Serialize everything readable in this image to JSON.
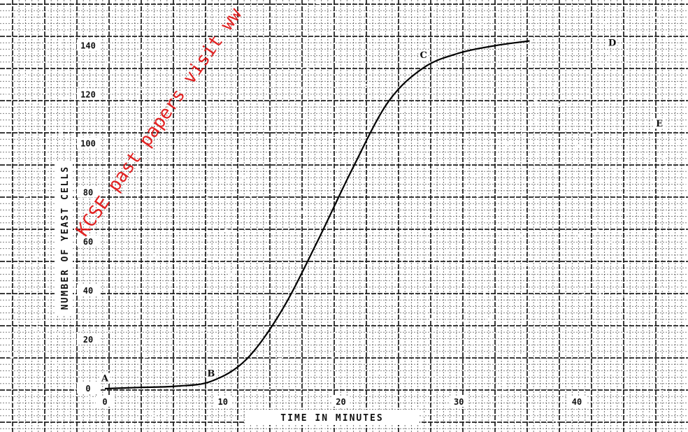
{
  "watermark": "KCSE past papers visit ww",
  "colors": {
    "paper": "#ffffff",
    "grid": "#1a1a1a",
    "curve": "#000000",
    "watermark": "#e01010"
  },
  "chart_data": {
    "type": "line",
    "xlabel": "TIME IN MINUTES",
    "ylabel": "NUMBER OF YEAST CELLS",
    "x_ticks": [
      0,
      10,
      20,
      30,
      40
    ],
    "x_tick_labels": [
      "0",
      "10",
      "20",
      "30",
      "40"
    ],
    "y_ticks": [
      0,
      20,
      40,
      60,
      80,
      100,
      120,
      140
    ],
    "y_tick_labels": [
      "0",
      "20",
      "40",
      "60",
      "80",
      "100",
      "120",
      "140"
    ],
    "xlim": [
      0,
      48
    ],
    "ylim": [
      0,
      145
    ],
    "grid": true,
    "series": [
      {
        "x": [
          0,
          3,
          6,
          9,
          12,
          15,
          18,
          21,
          24,
          27,
          30,
          33,
          36
        ],
        "y": [
          0,
          0.5,
          1,
          3,
          12,
          32,
          60,
          90,
          117,
          131,
          137,
          140,
          142
        ]
      }
    ],
    "point_labels": [
      {
        "text": "A",
        "x": 0,
        "y": 3
      },
      {
        "text": "B",
        "x": 9,
        "y": 5
      },
      {
        "text": "C",
        "x": 27,
        "y": 135
      },
      {
        "text": "D",
        "x": 43,
        "y": 140
      },
      {
        "text": "E",
        "x": 47,
        "y": 107
      }
    ]
  }
}
